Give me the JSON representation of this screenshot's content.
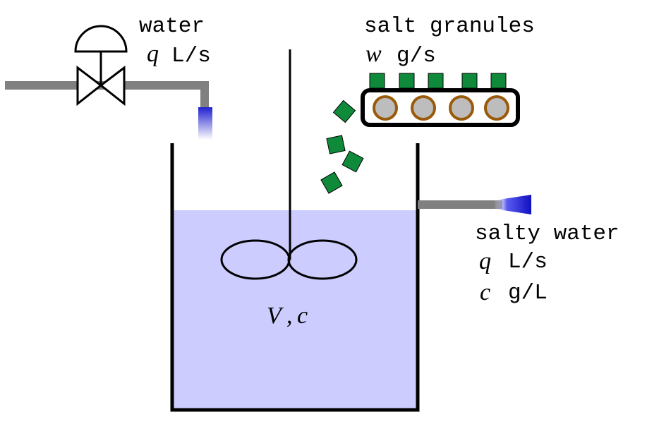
{
  "inlet": {
    "label": "water",
    "flow_symbol": "q",
    "flow_unit": "L/s"
  },
  "salt": {
    "label": "salt granules",
    "rate_symbol": "w",
    "rate_unit": "g/s"
  },
  "tank": {
    "label_volume": "V",
    "label_sep": ",",
    "label_conc": "c"
  },
  "outlet": {
    "label": "salty water",
    "flow_symbol": "q",
    "flow_unit": "L/s",
    "conc_symbol": "c",
    "conc_unit": "g/L"
  },
  "colors": {
    "liquid": "#ccccff",
    "pipe": "#808080",
    "salt": "#0e8a3a",
    "roller_fill": "#bdbdbd",
    "roller_ring": "#9a5a0a",
    "water_stream": "#2020d0"
  }
}
